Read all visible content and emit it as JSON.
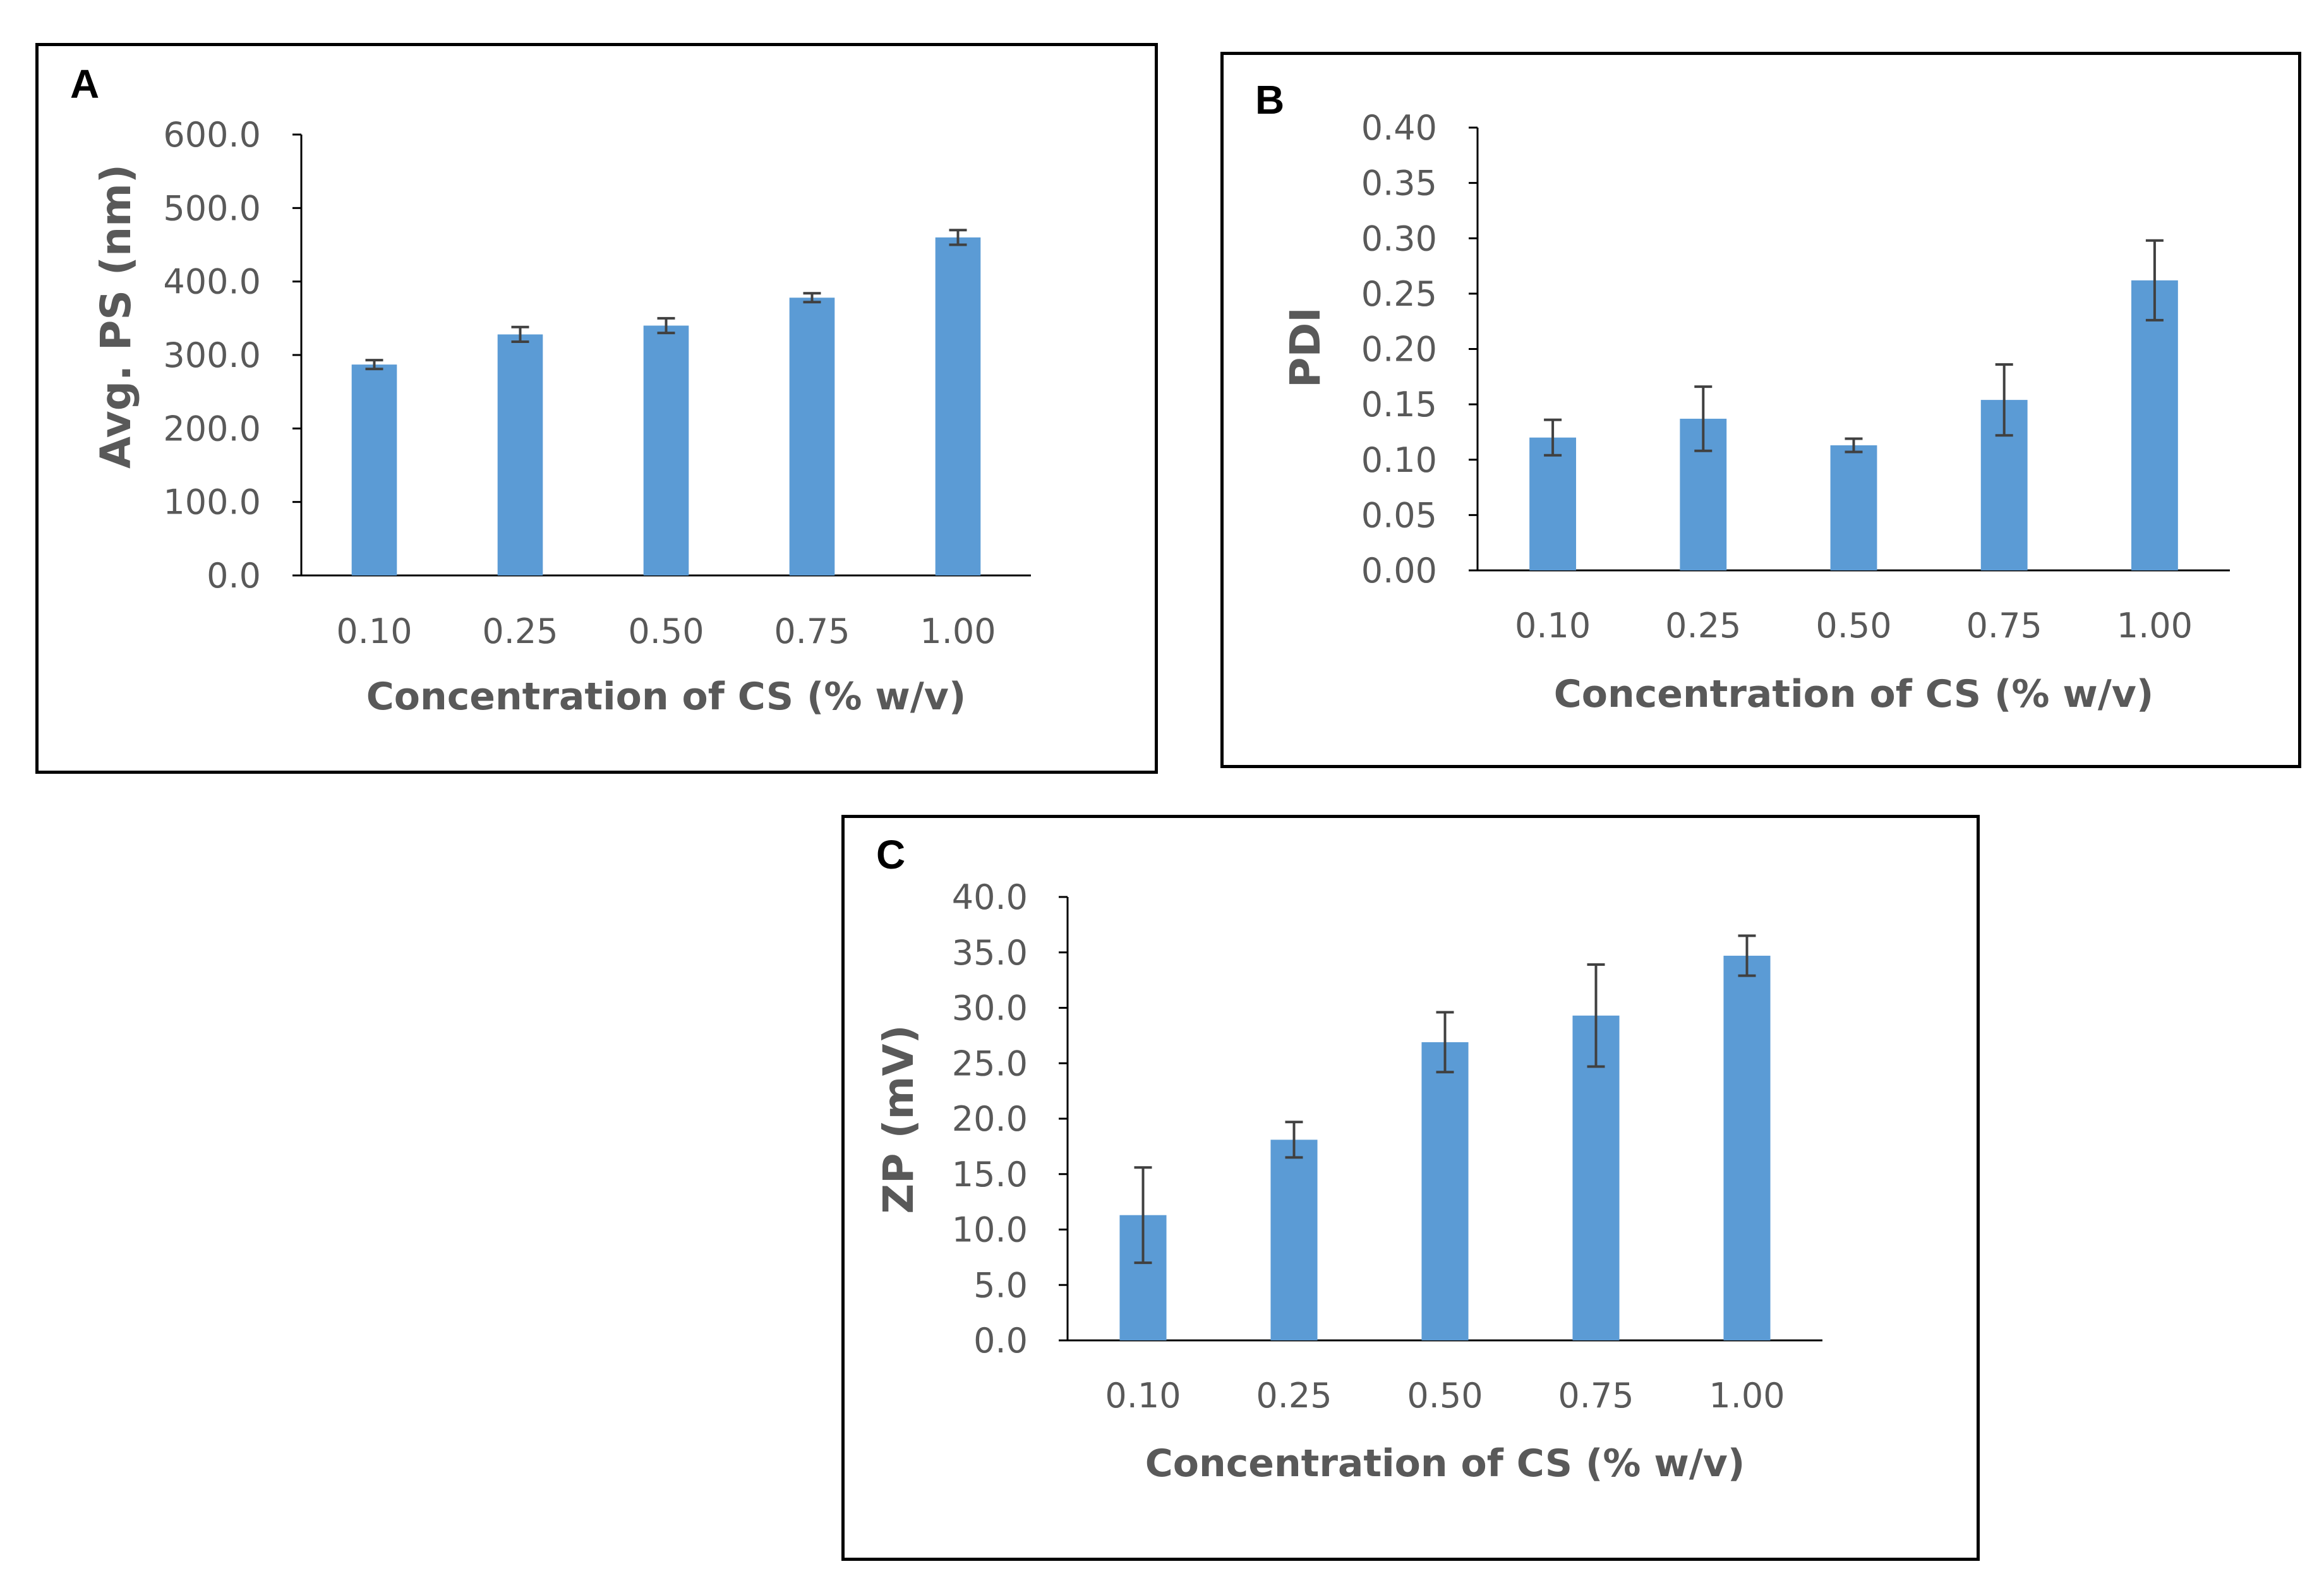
{
  "chart_data": [
    {
      "panel": "A",
      "type": "bar",
      "categories": [
        "0.10",
        "0.25",
        "0.50",
        "0.75",
        "1.00"
      ],
      "values": [
        287,
        328,
        340,
        378,
        460
      ],
      "errors": [
        6,
        10,
        10,
        6,
        10
      ],
      "yticks": [
        "0.0",
        "100.0",
        "200.0",
        "300.0",
        "400.0",
        "500.0",
        "600.0"
      ],
      "ylim": [
        0,
        600
      ],
      "xlabel": "Concentration of CS (% w/v)",
      "ylabel": "Avg. PS (nm)",
      "color": "#5b9bd5"
    },
    {
      "panel": "B",
      "type": "bar",
      "categories": [
        "0.10",
        "0.25",
        "0.50",
        "0.75",
        "1.00"
      ],
      "values": [
        0.12,
        0.137,
        0.113,
        0.154,
        0.262
      ],
      "errors": [
        0.016,
        0.029,
        0.006,
        0.032,
        0.036
      ],
      "yticks": [
        "0.00",
        "0.05",
        "0.10",
        "0.15",
        "0.20",
        "0.25",
        "0.30",
        "0.35",
        "0.40"
      ],
      "ylim": [
        0,
        0.4
      ],
      "xlabel": "Concentration of CS (% w/v)",
      "ylabel": "PDI",
      "color": "#5b9bd5"
    },
    {
      "panel": "C",
      "type": "bar",
      "categories": [
        "0.10",
        "0.25",
        "0.50",
        "0.75",
        "1.00"
      ],
      "values": [
        11.3,
        18.1,
        26.9,
        29.3,
        34.7
      ],
      "errors": [
        4.3,
        1.6,
        2.7,
        4.6,
        1.8
      ],
      "yticks": [
        "0.0",
        "5.0",
        "10.0",
        "15.0",
        "20.0",
        "25.0",
        "30.0",
        "35.0",
        "40.0"
      ],
      "ylim": [
        0,
        40
      ],
      "xlabel": "Concentration of CS (% w/v)",
      "ylabel": "ZP (mV)",
      "color": "#5b9bd5"
    }
  ]
}
